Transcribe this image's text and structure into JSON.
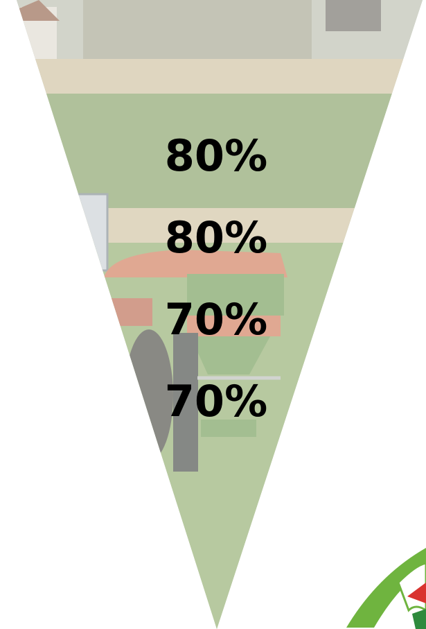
{
  "labels": [
    "80%",
    "80%",
    "70%",
    "70%"
  ]
}
